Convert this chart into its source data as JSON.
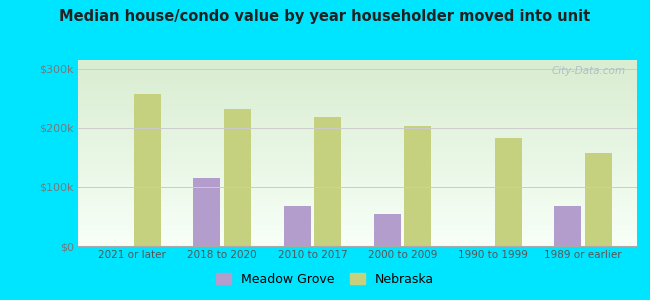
{
  "title": "Median house/condo value by year householder moved into unit",
  "categories": [
    "2021 or later",
    "2018 to 2020",
    "2010 to 2017",
    "2000 to 2009",
    "1990 to 1999",
    "1989 or earlier"
  ],
  "meadow_grove": [
    null,
    115000,
    68000,
    55000,
    null,
    68000
  ],
  "nebraska": [
    258000,
    232000,
    218000,
    203000,
    183000,
    158000
  ],
  "meadow_grove_color": "#b39dcc",
  "nebraska_color": "#c5d17f",
  "background_outer": "#00e5ff",
  "background_inner": "#e8f5e0",
  "yticks": [
    0,
    100000,
    200000,
    300000
  ],
  "ytick_labels": [
    "$0",
    "$100k",
    "$200k",
    "$300k"
  ],
  "ylim": [
    0,
    315000
  ],
  "bar_width": 0.3,
  "watermark": "City-Data.com",
  "legend_meadow": "Meadow Grove",
  "legend_nebraska": "Nebraska"
}
